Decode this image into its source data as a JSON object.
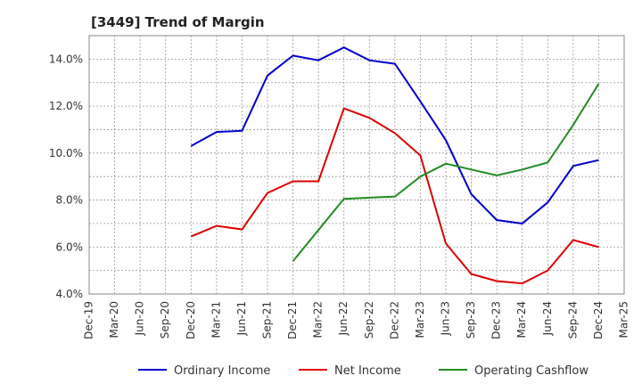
{
  "chart_data": {
    "type": "line",
    "title": "[3449]  Trend of Margin",
    "xlabel": "",
    "ylabel": "",
    "categories": [
      "Dec-19",
      "Mar-20",
      "Jun-20",
      "Sep-20",
      "Dec-20",
      "Mar-21",
      "Jun-21",
      "Sep-21",
      "Dec-21",
      "Mar-22",
      "Jun-22",
      "Sep-22",
      "Dec-22",
      "Mar-23",
      "Jun-23",
      "Sep-23",
      "Dec-23",
      "Mar-24",
      "Jun-24",
      "Sep-24",
      "Dec-24",
      "Mar-25"
    ],
    "ylim": [
      4.0,
      15.0
    ],
    "yticks": [
      "4.0%",
      "6.0%",
      "8.0%",
      "10.0%",
      "12.0%",
      "14.0%"
    ],
    "ytick_values": [
      4,
      6,
      8,
      10,
      12,
      14
    ],
    "grid": true,
    "legend_position": "bottom",
    "series": [
      {
        "name": "Ordinary Income",
        "color": "#0000cc",
        "values": [
          null,
          null,
          null,
          null,
          10.3,
          10.9,
          10.95,
          13.3,
          14.15,
          13.95,
          14.5,
          13.95,
          13.8,
          12.2,
          10.55,
          8.25,
          7.15,
          7.0,
          7.9,
          9.45,
          9.7,
          null
        ]
      },
      {
        "name": "Net Income",
        "color": "#dd0000",
        "values": [
          null,
          null,
          null,
          null,
          6.45,
          6.9,
          6.75,
          8.3,
          8.8,
          8.8,
          11.9,
          11.5,
          10.85,
          9.9,
          6.15,
          4.85,
          4.55,
          4.45,
          5.0,
          6.3,
          6.0,
          null
        ]
      },
      {
        "name": "Operating Cashflow",
        "color": "#228b22",
        "values": [
          null,
          null,
          null,
          null,
          null,
          null,
          null,
          null,
          5.4,
          null,
          8.05,
          8.1,
          8.15,
          9.0,
          9.55,
          9.3,
          9.05,
          9.3,
          9.6,
          11.2,
          12.95,
          null
        ]
      }
    ]
  }
}
